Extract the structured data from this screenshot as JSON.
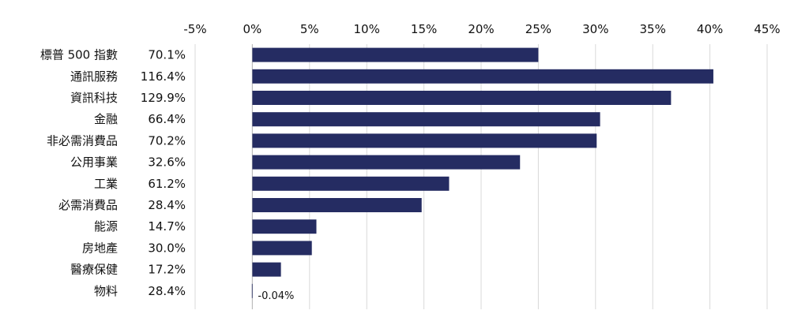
{
  "chart_data": {
    "type": "bar",
    "orientation": "horizontal",
    "title": "",
    "xlabel": "",
    "ylabel": "",
    "x_tick_labels": [
      "-5%",
      "0%",
      "5%",
      "10%",
      "15%",
      "20%",
      "25%",
      "30%",
      "35%",
      "40%",
      "45%"
    ],
    "xlim": [
      -5,
      45
    ],
    "x_ticks": [
      -5,
      0,
      5,
      10,
      15,
      20,
      25,
      30,
      35,
      40,
      45
    ],
    "grid": "vertical",
    "legend": "none",
    "categories": [
      "標普 500 指數",
      "通訊服務",
      "資訊科技",
      "金融",
      "非必需消費品",
      "公用事業",
      "工業",
      "必需消費品",
      "能源",
      "房地產",
      "醫療保健",
      "物料"
    ],
    "side_values": [
      "70.1%",
      "116.4%",
      "129.9%",
      "66.4%",
      "70.2%",
      "32.6%",
      "61.2%",
      "28.4%",
      "14.7%",
      "30.0%",
      "17.2%",
      "28.4%"
    ],
    "values": [
      25.0,
      40.3,
      36.6,
      30.4,
      30.1,
      23.4,
      17.2,
      14.8,
      5.6,
      5.2,
      2.5,
      -0.04
    ],
    "data_labels": [
      "",
      "",
      "",
      "",
      "",
      "",
      "",
      "",
      "",
      "",
      "",
      "-0.04%"
    ],
    "bar_color": "#252c62"
  }
}
